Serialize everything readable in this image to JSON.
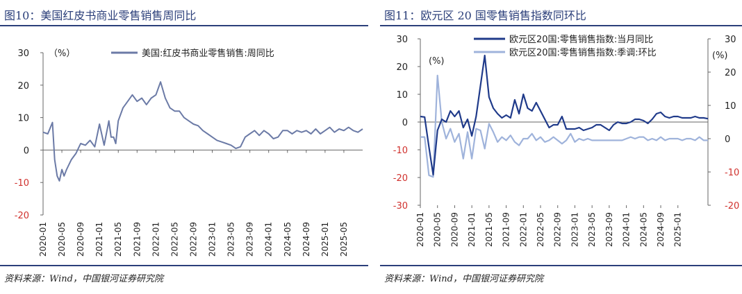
{
  "left": {
    "title": "图10：美国红皮书商业零售销售周同比",
    "source": "资料来源：Wind，中国银河证券研究院",
    "chart_data": {
      "type": "line",
      "unit_label": "（%）",
      "ylim": [
        -20,
        30
      ],
      "yticks": [
        -20,
        -10,
        0,
        10,
        20,
        30
      ],
      "xlim": [
        "2020-01",
        "2025-09"
      ],
      "xticks": [
        "2020-01",
        "2020-05",
        "2020-09",
        "2021-01",
        "2021-05",
        "2021-09",
        "2022-01",
        "2022-05",
        "2022-09",
        "2023-01",
        "2023-05",
        "2023-09",
        "2024-01",
        "2024-05",
        "2024-09",
        "2025-01",
        "2025-05"
      ],
      "legend_position": "top",
      "colors": {
        "line": "#6b7aa6",
        "negative_tick": "#d0312d",
        "positive_tick": "#222222",
        "axis": "#666666"
      },
      "series": [
        {
          "name": "美国:红皮书商业零售销售:周同比",
          "x": [
            "2020-01",
            "2020-02",
            "2020-03",
            "2020-03-15",
            "2020-04",
            "2020-04-15",
            "2020-05",
            "2020-05-15",
            "2020-06",
            "2020-07",
            "2020-08",
            "2020-09",
            "2020-10",
            "2020-11",
            "2020-12",
            "2021-01",
            "2021-02",
            "2021-03",
            "2021-03-15",
            "2021-04",
            "2021-04-15",
            "2021-05",
            "2021-06",
            "2021-07",
            "2021-08",
            "2021-09",
            "2021-10",
            "2021-11",
            "2021-12",
            "2022-01",
            "2022-02",
            "2022-03",
            "2022-04",
            "2022-05",
            "2022-06",
            "2022-07",
            "2022-08",
            "2022-09",
            "2022-10",
            "2022-11",
            "2022-12",
            "2023-01",
            "2023-02",
            "2023-03",
            "2023-04",
            "2023-05",
            "2023-06",
            "2023-07",
            "2023-08",
            "2023-09",
            "2023-10",
            "2023-11",
            "2023-12",
            "2024-01",
            "2024-02",
            "2024-03",
            "2024-04",
            "2024-05",
            "2024-06",
            "2024-07",
            "2024-08",
            "2024-09",
            "2024-10",
            "2024-11",
            "2024-12",
            "2025-01",
            "2025-02",
            "2025-03",
            "2025-04",
            "2025-05",
            "2025-06",
            "2025-07",
            "2025-08",
            "2025-09"
          ],
          "values": [
            5.5,
            5.0,
            8.5,
            -3,
            -8,
            -9.5,
            -6,
            -8,
            -6,
            -3,
            -1,
            2,
            1.5,
            3,
            1,
            8,
            1.5,
            9,
            4,
            4,
            2,
            9,
            13,
            15,
            17,
            15,
            16,
            14,
            16,
            17,
            21,
            16,
            13,
            12,
            12,
            10,
            9,
            8,
            7.5,
            6,
            5,
            4,
            3,
            2.5,
            2,
            1.5,
            0.5,
            1,
            4,
            5,
            6,
            4.5,
            6,
            5,
            3.5,
            4,
            6,
            6,
            5,
            6,
            5.5,
            6,
            5,
            6.5,
            5,
            6,
            7,
            5.5,
            6.5,
            6,
            7,
            6,
            5.5,
            6.5
          ]
        }
      ]
    }
  },
  "right": {
    "title": "图11：欧元区 20 国零售销售指数同环比",
    "source": "资料来源：Wind，中国银河证券研究院",
    "chart_data": {
      "type": "line",
      "unit_label_left": "(%)",
      "unit_label_right": "(%)",
      "ylim_left": [
        -30,
        30
      ],
      "yticks_left": [
        -30,
        -20,
        -10,
        0,
        10,
        20,
        30
      ],
      "ylim_right": [
        -20,
        30
      ],
      "yticks_right": [
        -20,
        -10,
        0,
        10,
        20,
        30
      ],
      "xlim": [
        "2020-01",
        "2025-08"
      ],
      "xticks": [
        "2020-01",
        "2020-05",
        "2020-09",
        "2021-01",
        "2021-05",
        "2021-09",
        "2022-01",
        "2022-05",
        "2022-09",
        "2023-01",
        "2023-05",
        "2023-09",
        "2024-01",
        "2024-05",
        "2024-09",
        "2025-01"
      ],
      "legend_position": "top",
      "colors": {
        "yoy": "#1f3a8a",
        "mom": "#9fb3db",
        "negative_tick": "#d0312d",
        "positive_tick": "#222222",
        "axis": "#666666"
      },
      "series": [
        {
          "name": "欧元区20国:零售销售指数:当月同比",
          "axis": "left",
          "x": [
            "2020-01",
            "2020-02",
            "2020-03",
            "2020-04",
            "2020-05",
            "2020-06",
            "2020-07",
            "2020-08",
            "2020-09",
            "2020-10",
            "2020-11",
            "2020-12",
            "2021-01",
            "2021-02",
            "2021-03",
            "2021-04",
            "2021-05",
            "2021-06",
            "2021-07",
            "2021-08",
            "2021-09",
            "2021-10",
            "2021-11",
            "2021-12",
            "2022-01",
            "2022-02",
            "2022-03",
            "2022-04",
            "2022-05",
            "2022-06",
            "2022-07",
            "2022-08",
            "2022-09",
            "2022-10",
            "2022-11",
            "2022-12",
            "2023-01",
            "2023-02",
            "2023-03",
            "2023-04",
            "2023-05",
            "2023-06",
            "2023-07",
            "2023-08",
            "2023-09",
            "2023-10",
            "2023-11",
            "2023-12",
            "2024-01",
            "2024-02",
            "2024-03",
            "2024-04",
            "2024-05",
            "2024-06",
            "2024-07",
            "2024-08",
            "2024-09",
            "2024-10",
            "2024-11",
            "2024-12",
            "2025-01",
            "2025-02",
            "2025-03",
            "2025-04",
            "2025-05",
            "2025-06",
            "2025-07",
            "2025-08"
          ],
          "values": [
            2,
            1.8,
            -9,
            -19,
            -3,
            1,
            0,
            4,
            2,
            4,
            -2,
            1,
            -5,
            2,
            13,
            24,
            9,
            5,
            3,
            1.5,
            2.5,
            1.5,
            8,
            3,
            10,
            5,
            4,
            7,
            4,
            1,
            -2,
            -1,
            -1,
            2,
            -2.5,
            -2.5,
            -2.5,
            -2,
            -3,
            -2.5,
            -2,
            -1,
            -1,
            -2,
            -3,
            -1,
            0,
            -0.5,
            -0.5,
            0,
            1,
            1,
            0.5,
            -0.5,
            1,
            3,
            3.5,
            2,
            1.5,
            2,
            2,
            1.5,
            1.5,
            1.5,
            2,
            1.5,
            1.5,
            1.2
          ]
        },
        {
          "name": "欧元区20国:零售销售指数:季调:环比",
          "axis": "right",
          "x": [
            "2020-01",
            "2020-02",
            "2020-03",
            "2020-04",
            "2020-05",
            "2020-06",
            "2020-07",
            "2020-08",
            "2020-09",
            "2020-10",
            "2020-11",
            "2020-12",
            "2021-01",
            "2021-02",
            "2021-03",
            "2021-04",
            "2021-05",
            "2021-06",
            "2021-07",
            "2021-08",
            "2021-09",
            "2021-10",
            "2021-11",
            "2021-12",
            "2022-01",
            "2022-02",
            "2022-03",
            "2022-04",
            "2022-05",
            "2022-06",
            "2022-07",
            "2022-08",
            "2022-09",
            "2022-10",
            "2022-11",
            "2022-12",
            "2023-01",
            "2023-02",
            "2023-03",
            "2023-04",
            "2023-05",
            "2023-06",
            "2023-07",
            "2023-08",
            "2023-09",
            "2023-10",
            "2023-11",
            "2023-12",
            "2024-01",
            "2024-02",
            "2024-03",
            "2024-04",
            "2024-05",
            "2024-06",
            "2024-07",
            "2024-08",
            "2024-09",
            "2024-10",
            "2024-11",
            "2024-12",
            "2025-01",
            "2025-02",
            "2025-03",
            "2025-04",
            "2025-05",
            "2025-06",
            "2025-07",
            "2025-08"
          ],
          "values": [
            0.5,
            0.5,
            -11,
            -11.5,
            19,
            5,
            0,
            3,
            -1,
            1.5,
            -6,
            2,
            -6,
            3,
            2.5,
            -3,
            4.5,
            2,
            -1,
            0.5,
            -0.5,
            1,
            -1,
            -2,
            0,
            0,
            1.5,
            -0.5,
            0.5,
            -1,
            -0.5,
            0.5,
            -0.5,
            -1.5,
            -0.5,
            1.5,
            -1,
            0,
            -0.5,
            0,
            -0.5,
            -0.5,
            -0.5,
            -0.5,
            -0.5,
            -0.5,
            -0.5,
            -0.5,
            0,
            0.5,
            0,
            0.5,
            0.5,
            -0.5,
            0,
            -0.5,
            0.5,
            -0.5,
            0,
            0,
            0,
            -0.5,
            0,
            0,
            -0.5,
            0.5,
            -0.5,
            -0.5
          ]
        }
      ]
    }
  }
}
